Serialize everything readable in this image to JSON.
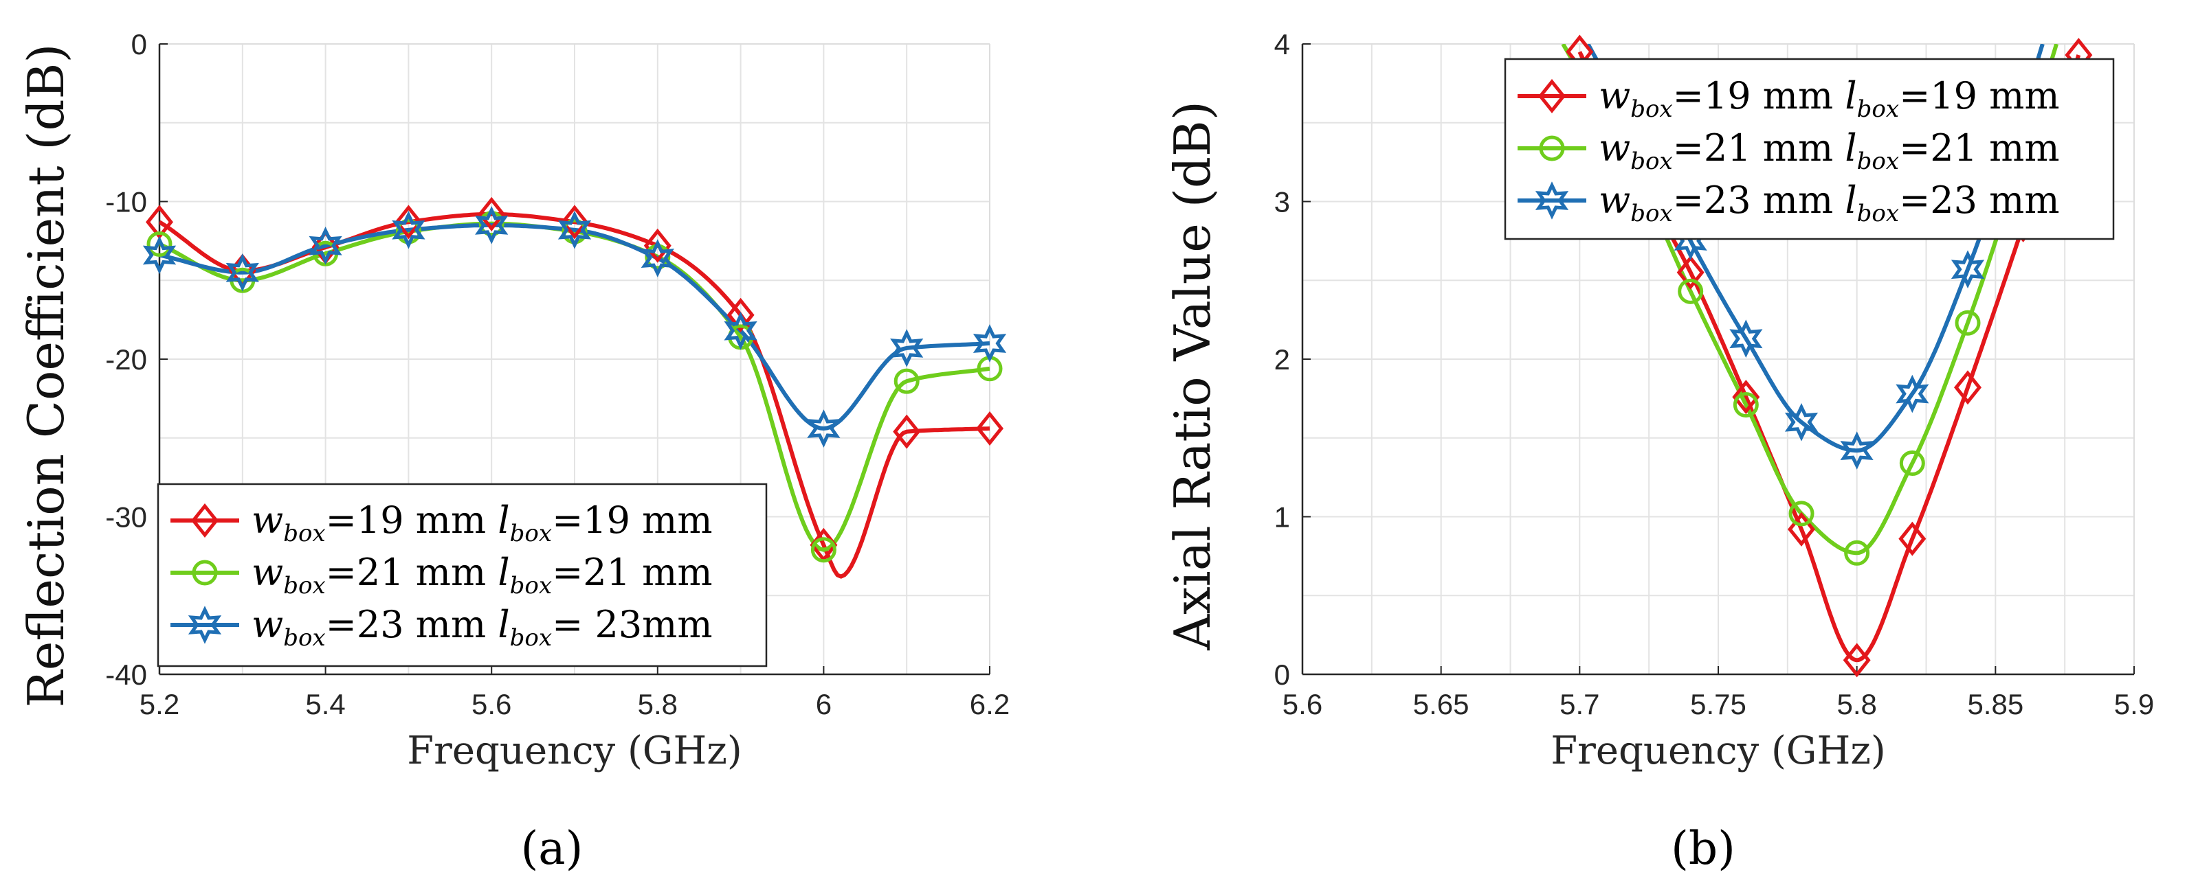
{
  "chart_data": [
    {
      "type": "line",
      "panel_label": "(a)",
      "xlabel": "Frequency (GHz)",
      "ylabel": "Reflection Coefficient (dB)",
      "xlim": [
        5.2,
        6.2
      ],
      "ylim": [
        -40,
        0
      ],
      "xticks": [
        "5.2",
        "5.4",
        "5.6",
        "5.8",
        "6",
        "6.2"
      ],
      "yticks": [
        "0",
        "-10",
        "-20",
        "-30",
        "-40"
      ],
      "grid": true,
      "legend_position": "bottom-left",
      "series": [
        {
          "name": "w_box=19 mm l_box=19 mm",
          "legend": {
            "w": "w",
            "wsub": "box",
            "mid": "=19 mm ",
            "l": "l",
            "lsub": "box",
            "end": "=19 mm"
          },
          "color": "#e3171b",
          "marker": "diamond",
          "x": [
            5.2,
            5.3,
            5.4,
            5.5,
            5.6,
            5.7,
            5.8,
            5.9,
            6.0,
            6.02,
            6.1,
            6.2
          ],
          "y": [
            -11.3,
            -14.4,
            -12.9,
            -11.3,
            -10.8,
            -11.3,
            -12.8,
            -17.2,
            -31.8,
            -33.8,
            -24.6,
            -24.4
          ],
          "markers_x": [
            5.2,
            5.3,
            5.4,
            5.5,
            5.6,
            5.7,
            5.8,
            5.9,
            6.0,
            6.1,
            6.2
          ]
        },
        {
          "name": "w_box=21 mm l_box=21 mm",
          "legend": {
            "w": "w",
            "wsub": "box",
            "mid": "=21 mm ",
            "l": "l",
            "lsub": "box",
            "end": "=21 mm"
          },
          "color": "#6fcd1c",
          "marker": "circle",
          "x": [
            5.2,
            5.3,
            5.4,
            5.5,
            5.6,
            5.7,
            5.8,
            5.9,
            6.0,
            6.1,
            6.2
          ],
          "y": [
            -12.7,
            -15.0,
            -13.3,
            -11.9,
            -11.4,
            -11.9,
            -13.5,
            -18.6,
            -32.1,
            -21.4,
            -20.6
          ],
          "markers_x": [
            5.2,
            5.3,
            5.4,
            5.5,
            5.6,
            5.7,
            5.8,
            5.9,
            6.0,
            6.1,
            6.2
          ]
        },
        {
          "name": "w_box=23 mm l_box= 23mm",
          "legend": {
            "w": "w",
            "wsub": "box",
            "mid": "=23 mm ",
            "l": "l",
            "lsub": "box",
            "end": "= 23mm"
          },
          "color": "#1f6fb4",
          "marker": "hexagram",
          "x": [
            5.2,
            5.3,
            5.4,
            5.5,
            5.6,
            5.7,
            5.8,
            5.9,
            6.0,
            6.1,
            6.2
          ],
          "y": [
            -13.4,
            -14.5,
            -12.8,
            -11.8,
            -11.5,
            -11.8,
            -13.6,
            -18.2,
            -24.4,
            -19.3,
            -19.0
          ],
          "markers_x": [
            5.2,
            5.3,
            5.4,
            5.5,
            5.6,
            5.7,
            5.8,
            5.9,
            6.0,
            6.1,
            6.2
          ]
        }
      ]
    },
    {
      "type": "line",
      "panel_label": "(b)",
      "xlabel": "Frequency (GHz)",
      "ylabel": "Axial Ratio Value (dB)",
      "xlim": [
        5.6,
        5.9
      ],
      "ylim": [
        0,
        4
      ],
      "xticks": [
        "5.6",
        "5.65",
        "5.7",
        "5.75",
        "5.8",
        "5.85",
        "5.9"
      ],
      "yticks": [
        "4",
        "3",
        "2",
        "1",
        "0"
      ],
      "grid": true,
      "legend_position": "top-right",
      "series": [
        {
          "name": "w_box=19 mm l_box=19 mm",
          "legend": {
            "w": "w",
            "wsub": "box",
            "mid": "=19 mm ",
            "l": "l",
            "lsub": "box",
            "end": "=19 mm"
          },
          "color": "#e3171b",
          "marker": "diamond",
          "x": [
            5.7,
            5.72,
            5.74,
            5.76,
            5.78,
            5.8,
            5.82,
            5.84,
            5.86,
            5.88
          ],
          "y": [
            3.95,
            3.2,
            2.55,
            1.76,
            0.92,
            0.09,
            0.86,
            1.82,
            2.85,
            3.93
          ],
          "markers_x": [
            5.7,
            5.74,
            5.76,
            5.78,
            5.8,
            5.82,
            5.84,
            5.86,
            5.88
          ]
        },
        {
          "name": "w_box=21 mm l_box=21 mm",
          "legend": {
            "w": "w",
            "wsub": "box",
            "mid": "=21 mm ",
            "l": "l",
            "lsub": "box",
            "end": "=21 mm"
          },
          "color": "#6fcd1c",
          "marker": "circle",
          "x": [
            5.694,
            5.72,
            5.74,
            5.76,
            5.78,
            5.8,
            5.82,
            5.84,
            5.86,
            5.872
          ],
          "y": [
            4.0,
            3.2,
            2.43,
            1.71,
            1.02,
            0.77,
            1.34,
            2.23,
            3.3,
            4.0
          ],
          "markers_x": [
            5.74,
            5.76,
            5.78,
            5.8,
            5.82,
            5.84
          ]
        },
        {
          "name": "w_box=23 mm l_box=23 mm",
          "legend": {
            "w": "w",
            "wsub": "box",
            "mid": "=23 mm ",
            "l": "l",
            "lsub": "box",
            "end": "=23 mm"
          },
          "color": "#1f6fb4",
          "marker": "hexagram",
          "x": [
            5.703,
            5.72,
            5.74,
            5.76,
            5.78,
            5.8,
            5.82,
            5.84,
            5.86,
            5.867
          ],
          "y": [
            4.0,
            3.45,
            2.75,
            2.13,
            1.6,
            1.42,
            1.78,
            2.57,
            3.6,
            4.0
          ],
          "markers_x": [
            5.74,
            5.76,
            5.78,
            5.8,
            5.82,
            5.84
          ]
        }
      ]
    }
  ]
}
